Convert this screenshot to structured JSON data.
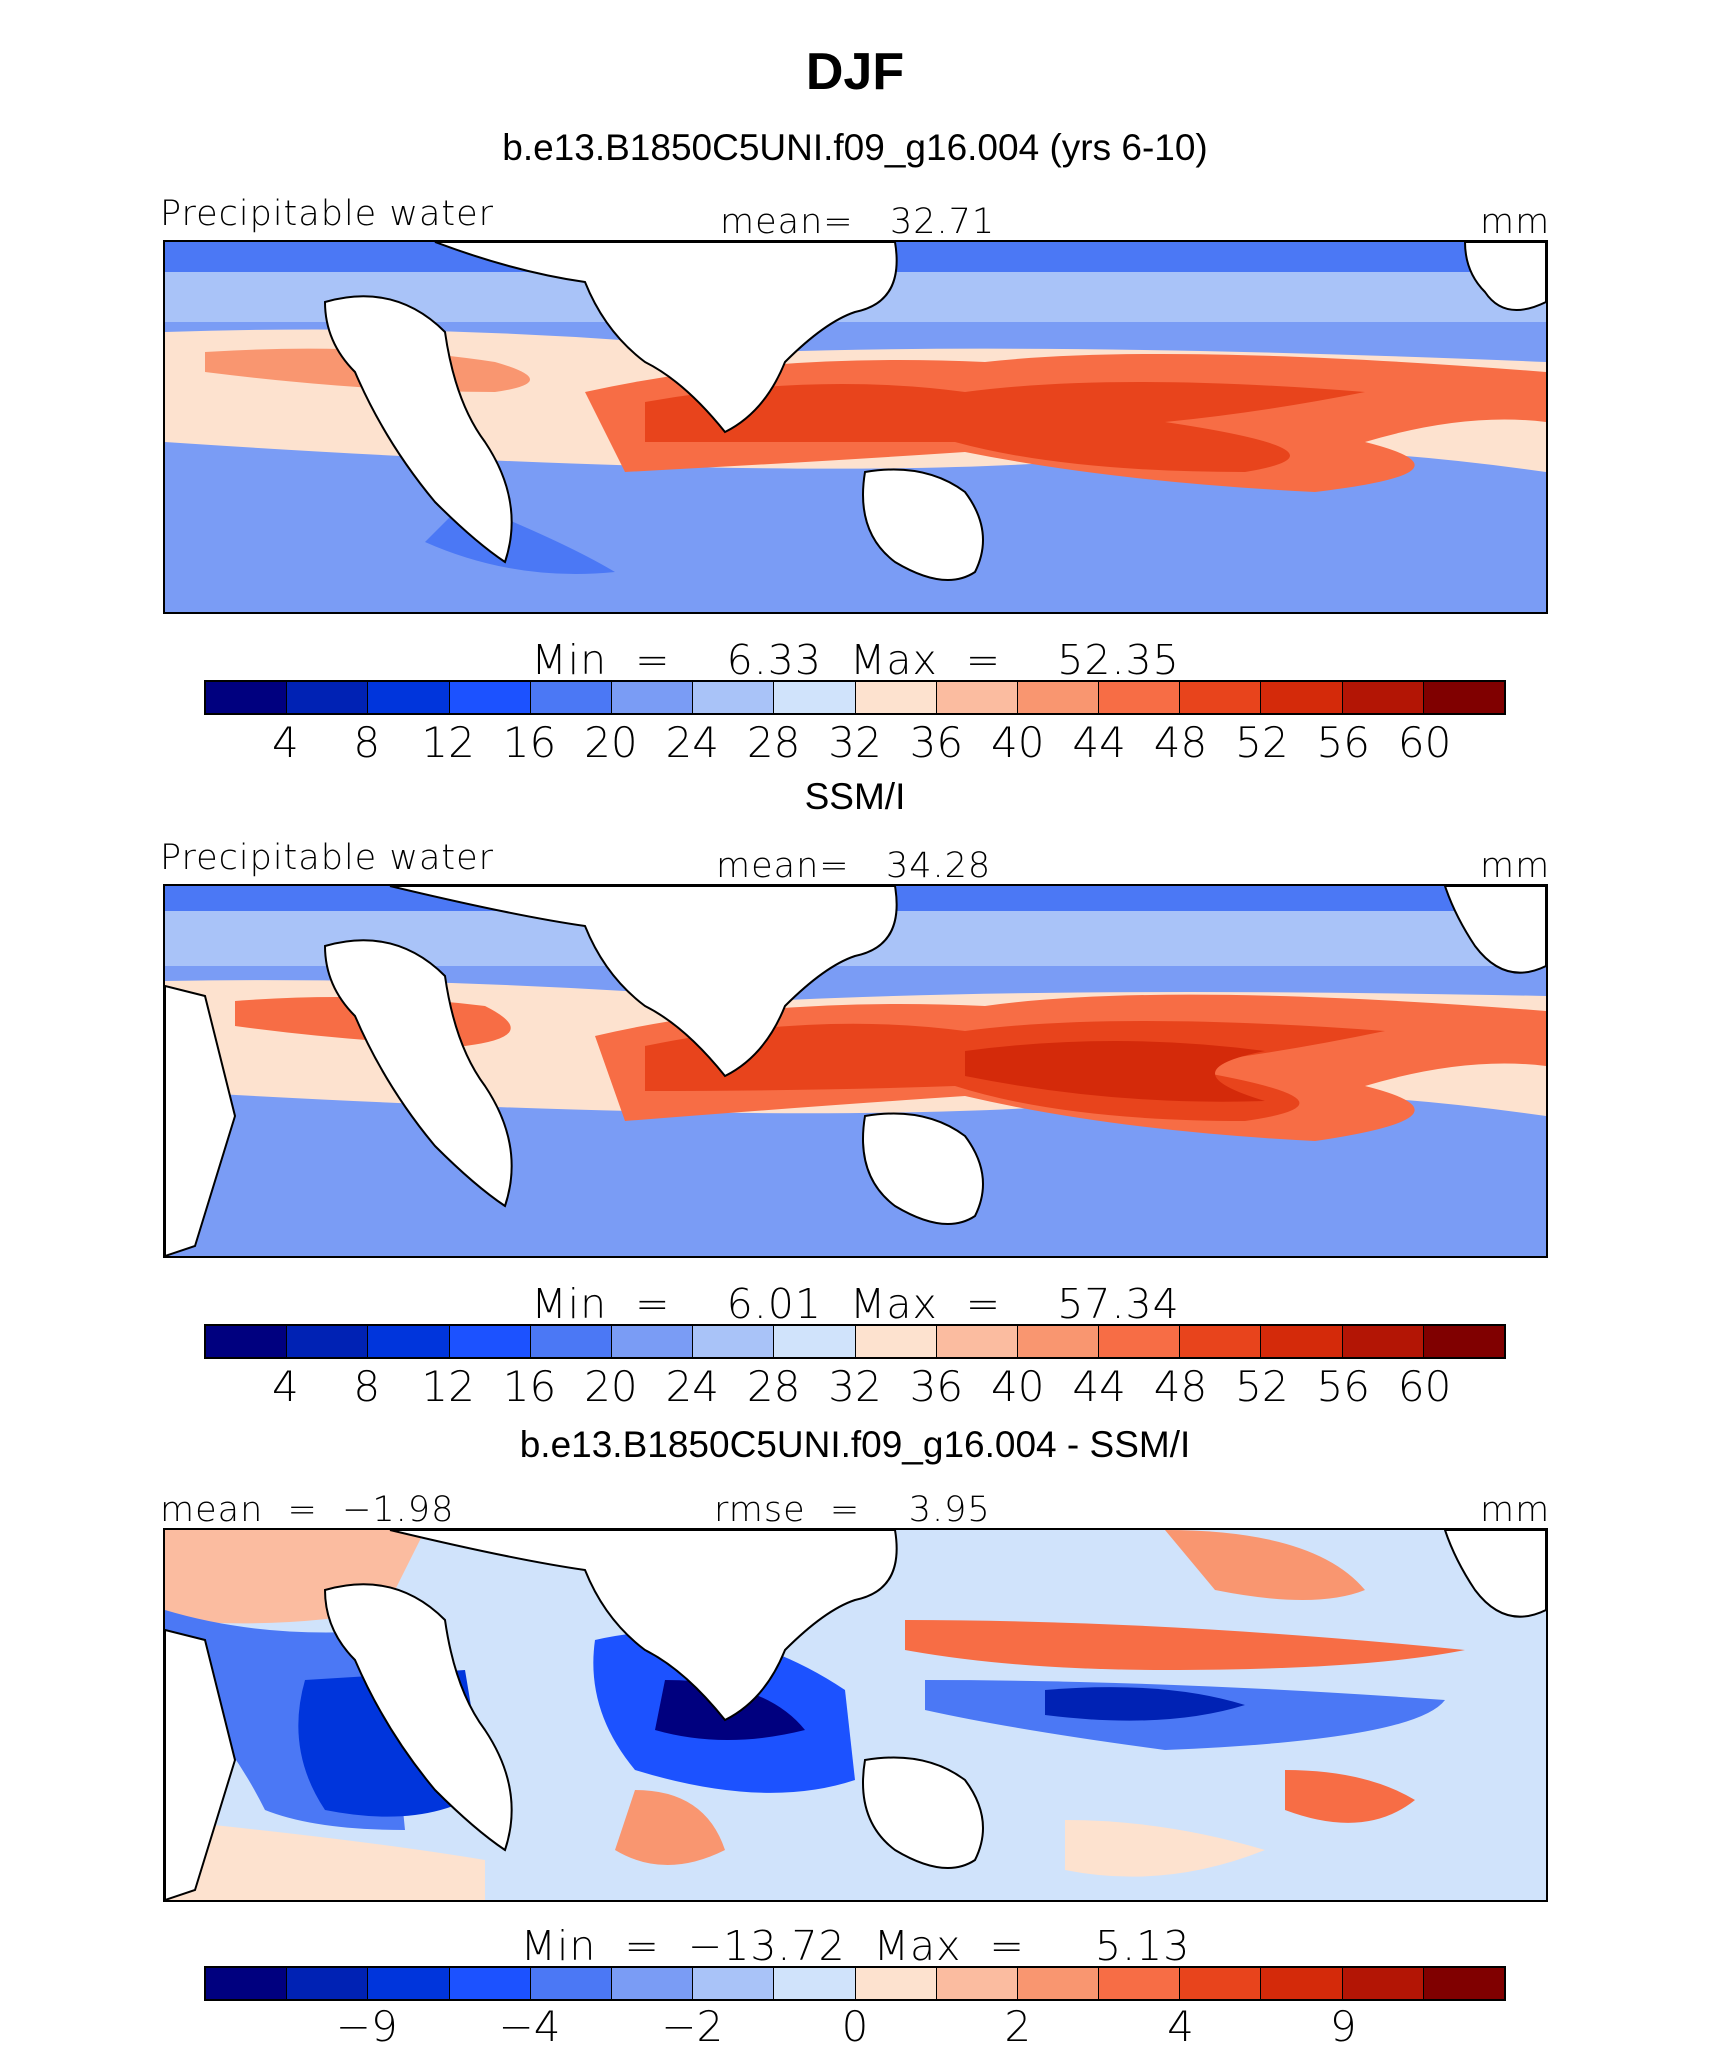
{
  "title": "DJF",
  "colors": {
    "abs": [
      "#00007f",
      "#0022b4",
      "#0035dc",
      "#1c52ff",
      "#4b78f5",
      "#7a9cf5",
      "#a9c3f8",
      "#d0e3fb",
      "#fde2cf",
      "#fbbca0",
      "#f99670",
      "#f76d45",
      "#e8441c",
      "#d42a0a",
      "#b31505",
      "#800000"
    ],
    "diff": [
      "#00007f",
      "#0022b4",
      "#0035dc",
      "#1c52ff",
      "#4b78f5",
      "#7a9cf5",
      "#a9c3f8",
      "#d0e3fb",
      "#fde2cf",
      "#fbbca0",
      "#f99670",
      "#f76d45",
      "#e8441c",
      "#d42a0a",
      "#b31505",
      "#800000"
    ]
  },
  "panels": [
    {
      "subtitle": "b.e13.B1850C5UNI.f09_g16.004 (yrs 6-10)",
      "left_label": "Precipitable water",
      "center_label": "mean=   32.71",
      "right_label": "mm",
      "stats": "Min  =    6.33  Max  =    52.35",
      "ticks": [
        "4",
        "8",
        "12",
        "16",
        "20",
        "24",
        "28",
        "32",
        "36",
        "40",
        "44",
        "48",
        "52",
        "56",
        "60"
      ]
    },
    {
      "subtitle": "SSM/I",
      "left_label": "Precipitable water",
      "center_label": "mean=   34.28",
      "right_label": "mm",
      "stats": "Min  =    6.01  Max  =    57.34",
      "ticks": [
        "4",
        "8",
        "12",
        "16",
        "20",
        "24",
        "28",
        "32",
        "36",
        "40",
        "44",
        "48",
        "52",
        "56",
        "60"
      ]
    },
    {
      "subtitle": "b.e13.B1850C5UNI.f09_g16.004 - SSM/I",
      "left_label": "mean  =  −1.98",
      "center_label": "rmse  =    3.95",
      "right_label": "mm",
      "stats": "Min  =  −13.72  Max  =     5.13",
      "ticks": [
        "−9",
        "−4",
        "−2",
        "0",
        "2",
        "4",
        "9"
      ]
    }
  ]
}
